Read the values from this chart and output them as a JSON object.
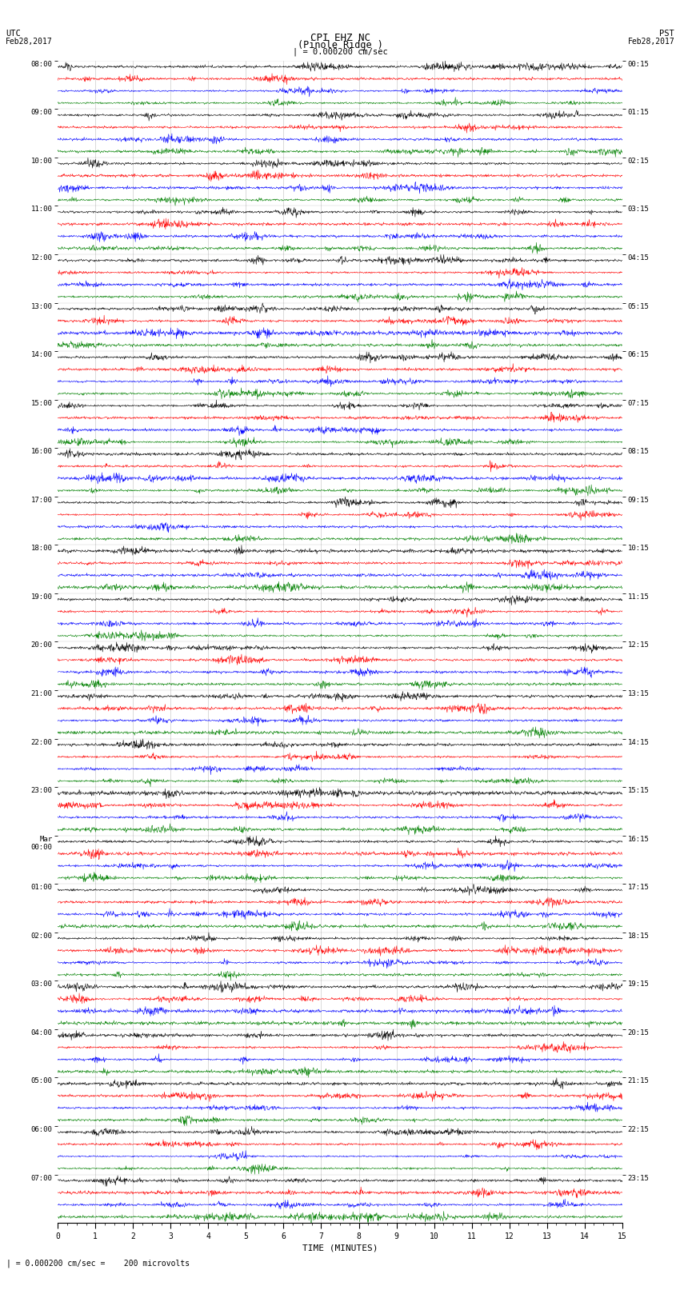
{
  "title_line1": "CPI EHZ NC",
  "title_line2": "(Pinole Ridge )",
  "scale_label": "| = 0.000200 cm/sec",
  "bottom_label": "| = 0.000200 cm/sec =    200 microvolts",
  "xlabel": "TIME (MINUTES)",
  "time_ticks": [
    0,
    1,
    2,
    3,
    4,
    5,
    6,
    7,
    8,
    9,
    10,
    11,
    12,
    13,
    14,
    15
  ],
  "utc_times": [
    "08:00",
    "09:00",
    "10:00",
    "11:00",
    "12:00",
    "13:00",
    "14:00",
    "15:00",
    "16:00",
    "17:00",
    "18:00",
    "19:00",
    "20:00",
    "21:00",
    "22:00",
    "23:00",
    "Mar\n00:00",
    "01:00",
    "02:00",
    "03:00",
    "04:00",
    "05:00",
    "06:00",
    "07:00"
  ],
  "pst_times": [
    "00:15",
    "01:15",
    "02:15",
    "03:15",
    "04:15",
    "05:15",
    "06:15",
    "07:15",
    "08:15",
    "09:15",
    "10:15",
    "11:15",
    "12:15",
    "13:15",
    "14:15",
    "15:15",
    "16:15",
    "17:15",
    "18:15",
    "19:15",
    "20:15",
    "21:15",
    "22:15",
    "23:15"
  ],
  "colors": [
    "black",
    "red",
    "blue",
    "green"
  ],
  "num_hours": 24,
  "traces_per_hour": 4,
  "noise_scale": 1.0,
  "fig_width": 8.5,
  "fig_height": 16.13,
  "dpi": 100
}
